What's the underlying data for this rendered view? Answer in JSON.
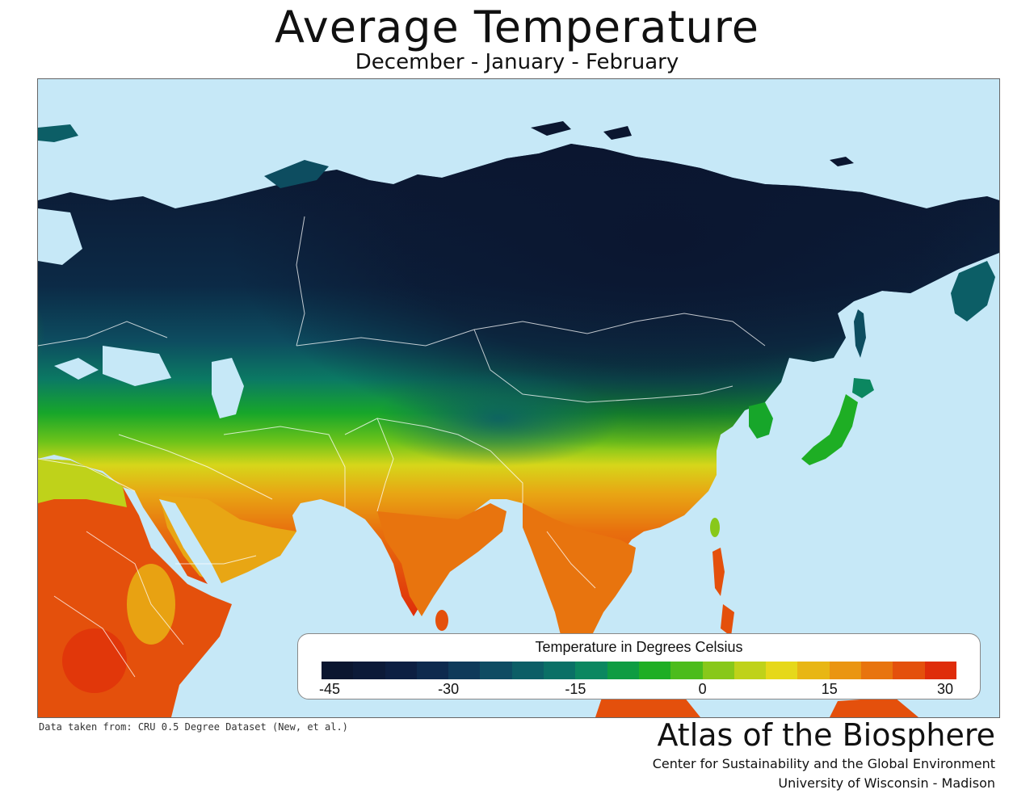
{
  "title": "Average  Temperature",
  "subtitle": "December - January - February",
  "legend": {
    "title": "Temperature in Degrees Celsius",
    "min": -45,
    "max": 30,
    "ticks": [
      "-45",
      "-30",
      "-15",
      "0",
      "15",
      "30"
    ],
    "colors": [
      "#0b1630",
      "#0c1a38",
      "#0d1f42",
      "#0e2a4e",
      "#0f3a5a",
      "#0e4c63",
      "#0c5e66",
      "#0a7066",
      "#0b8760",
      "#0e9c42",
      "#1eae24",
      "#4cbc1c",
      "#88c81a",
      "#bfd21a",
      "#e6d81a",
      "#e8b614",
      "#ea9512",
      "#e8740e",
      "#e4500c",
      "#df2c0a"
    ]
  },
  "source_note": "Data taken from: CRU 0.5 Degree Dataset (New, et al.)",
  "credits": {
    "atlas": "Atlas of the Biosphere",
    "center": "Center for Sustainability and the Global Environment",
    "university": "University of Wisconsin - Madison"
  },
  "map": {
    "ocean_color": "#c6e8f7",
    "border_color": "#ffffff"
  }
}
